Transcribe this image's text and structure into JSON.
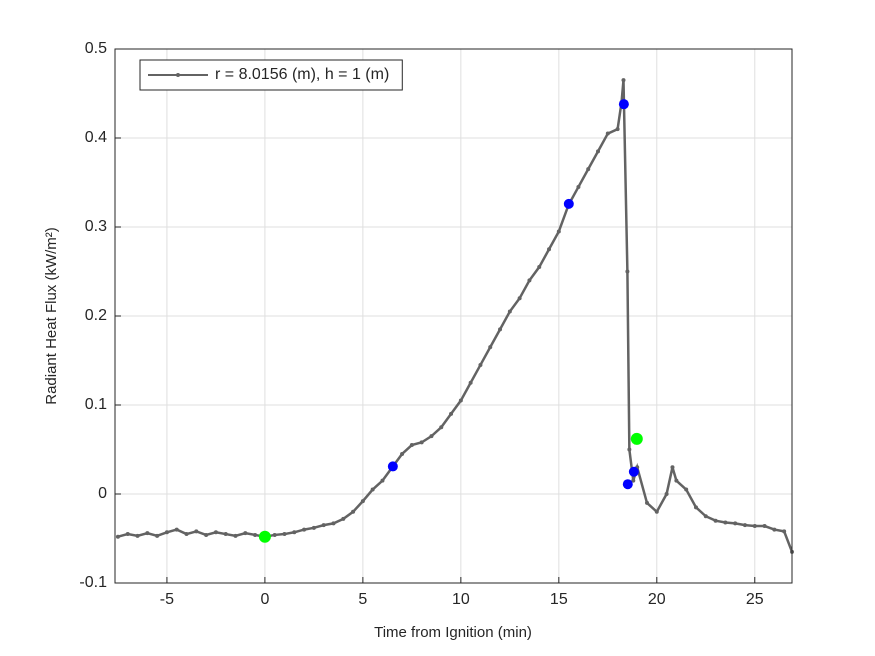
{
  "chart_data": {
    "type": "line",
    "xlabel": "Time from Ignition (min)",
    "ylabel": "Radiant Heat Flux (kW/m²)",
    "xlim": [
      -7.65,
      26.9
    ],
    "ylim": [
      -0.1,
      0.5
    ],
    "xticks": [
      -5,
      0,
      5,
      10,
      15,
      20,
      25
    ],
    "yticks": [
      -0.1,
      0,
      0.1,
      0.2,
      0.3,
      0.4,
      0.5
    ],
    "grid": true,
    "legend": "northwest",
    "series": [
      {
        "name": "r = 8.0156 (m), h = 1 (m)",
        "color": "#636363",
        "x": [
          -7.5,
          -7,
          -6.5,
          -6,
          -5.5,
          -5,
          -4.5,
          -4,
          -3.5,
          -3,
          -2.5,
          -2,
          -1.5,
          -1,
          -0.5,
          0,
          0.5,
          1,
          1.5,
          2,
          2.5,
          3,
          3.5,
          4,
          4.5,
          5,
          5.5,
          6,
          6.5,
          7,
          7.5,
          8,
          8.5,
          9,
          9.5,
          10,
          10.5,
          11,
          11.5,
          12,
          12.5,
          13,
          13.5,
          14,
          14.5,
          15,
          15.5,
          16,
          16.5,
          17,
          17.5,
          18,
          18.2,
          18.3,
          18.5,
          18.6,
          18.8,
          19,
          19.5,
          20,
          20.5,
          20.8,
          21,
          21.5,
          22,
          22.5,
          23,
          23.5,
          24,
          24.5,
          25,
          25.5,
          26,
          26.5,
          26.9
        ],
        "values": [
          -0.048,
          -0.045,
          -0.047,
          -0.044,
          -0.047,
          -0.043,
          -0.04,
          -0.045,
          -0.042,
          -0.046,
          -0.043,
          -0.045,
          -0.047,
          -0.044,
          -0.046,
          -0.048,
          -0.046,
          -0.045,
          -0.043,
          -0.04,
          -0.038,
          -0.035,
          -0.033,
          -0.028,
          -0.02,
          -0.008,
          0.005,
          0.015,
          0.03,
          0.045,
          0.055,
          0.058,
          0.065,
          0.075,
          0.09,
          0.105,
          0.125,
          0.145,
          0.165,
          0.185,
          0.205,
          0.22,
          0.24,
          0.255,
          0.275,
          0.295,
          0.325,
          0.345,
          0.365,
          0.385,
          0.405,
          0.41,
          0.44,
          0.465,
          0.25,
          0.05,
          0.015,
          0.03,
          -0.01,
          -0.02,
          0,
          0.03,
          0.015,
          0.005,
          -0.015,
          -0.025,
          -0.03,
          -0.032,
          -0.033,
          -0.035,
          -0.036,
          -0.036,
          -0.04,
          -0.042,
          -0.065
        ]
      },
      {
        "color": "#0000ff",
        "marker": "dot",
        "x": [
          6.53,
          15.51,
          18.32,
          18.52,
          18.83
        ],
        "values": [
          0.031,
          0.326,
          0.438,
          0.011,
          0.025
        ]
      },
      {
        "color": "#00ff00",
        "marker": "dot",
        "x": [
          0,
          18.98
        ],
        "values": [
          -0.048,
          0.062
        ]
      }
    ]
  }
}
